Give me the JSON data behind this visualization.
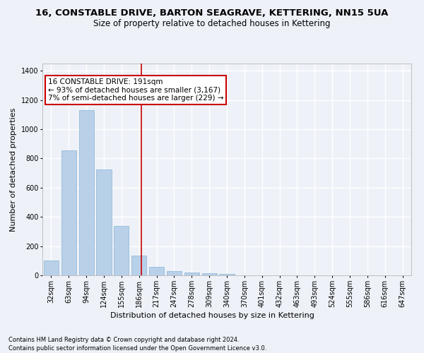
{
  "title": "16, CONSTABLE DRIVE, BARTON SEAGRAVE, KETTERING, NN15 5UA",
  "subtitle": "Size of property relative to detached houses in Kettering",
  "xlabel": "Distribution of detached houses by size in Kettering",
  "ylabel": "Number of detached properties",
  "footnote1": "Contains HM Land Registry data © Crown copyright and database right 2024.",
  "footnote2": "Contains public sector information licensed under the Open Government Licence v3.0.",
  "categories": [
    "32sqm",
    "63sqm",
    "94sqm",
    "124sqm",
    "155sqm",
    "186sqm",
    "217sqm",
    "247sqm",
    "278sqm",
    "309sqm",
    "340sqm",
    "370sqm",
    "401sqm",
    "432sqm",
    "463sqm",
    "493sqm",
    "524sqm",
    "555sqm",
    "586sqm",
    "616sqm",
    "647sqm"
  ],
  "values": [
    100,
    855,
    1130,
    725,
    340,
    135,
    60,
    30,
    20,
    15,
    10,
    0,
    0,
    0,
    0,
    0,
    0,
    0,
    0,
    0,
    0
  ],
  "bar_color": "#b8d0e8",
  "bar_edge_color": "#8ab4d4",
  "vline_x_index": 5.13,
  "annotation_text": "16 CONSTABLE DRIVE: 191sqm\n← 93% of detached houses are smaller (3,167)\n7% of semi-detached houses are larger (229) →",
  "annotation_box_color": "#ffffff",
  "annotation_box_edge": "#cc0000",
  "vline_color": "#cc0000",
  "ylim": [
    0,
    1450
  ],
  "yticks": [
    0,
    200,
    400,
    600,
    800,
    1000,
    1200,
    1400
  ],
  "background_color": "#eef2f8",
  "grid_color": "#ffffff",
  "title_fontsize": 9.5,
  "subtitle_fontsize": 8.5,
  "axis_fontsize": 8,
  "tick_fontsize": 7,
  "annot_fontsize": 7.5,
  "footnote_fontsize": 6
}
